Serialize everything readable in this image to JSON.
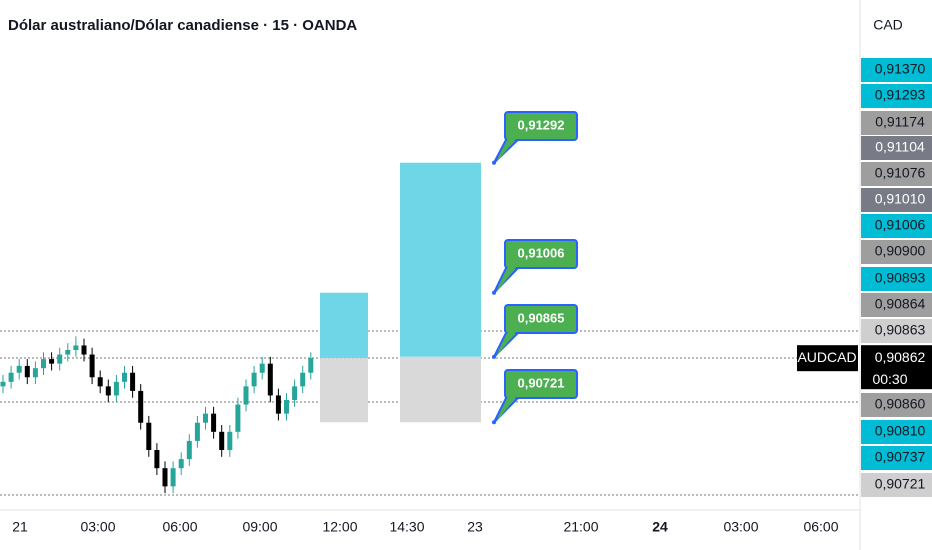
{
  "header": {
    "title": "Dólar australiano/Dólar canadiense · 15 · OANDA",
    "currency": "CAD"
  },
  "chart_data": {
    "type": "candlestick",
    "symbol": "AUDCAD",
    "ylim": [
      0.9055,
      0.9165
    ],
    "up_color": "#26a69a",
    "down_color": "#000000",
    "candles": [
      [
        0.908,
        0.90825,
        0.90785,
        0.9081
      ],
      [
        0.9081,
        0.90845,
        0.90795,
        0.9083
      ],
      [
        0.9083,
        0.9086,
        0.90815,
        0.90845
      ],
      [
        0.90845,
        0.9086,
        0.90805,
        0.9082
      ],
      [
        0.9082,
        0.90855,
        0.90805,
        0.9084
      ],
      [
        0.9084,
        0.90875,
        0.90825,
        0.9086
      ],
      [
        0.9086,
        0.90875,
        0.90835,
        0.9085
      ],
      [
        0.9085,
        0.90885,
        0.90835,
        0.9087
      ],
      [
        0.9087,
        0.90895,
        0.90855,
        0.9088
      ],
      [
        0.9088,
        0.9091,
        0.90865,
        0.9089
      ],
      [
        0.9089,
        0.90905,
        0.90855,
        0.9087
      ],
      [
        0.9087,
        0.90885,
        0.90805,
        0.9082
      ],
      [
        0.9082,
        0.90835,
        0.90785,
        0.908
      ],
      [
        0.908,
        0.90815,
        0.90765,
        0.9078
      ],
      [
        0.9078,
        0.90825,
        0.90765,
        0.9081
      ],
      [
        0.9081,
        0.90845,
        0.90795,
        0.9083
      ],
      [
        0.9083,
        0.90845,
        0.90775,
        0.9079
      ],
      [
        0.9079,
        0.90805,
        0.90705,
        0.9072
      ],
      [
        0.9072,
        0.90735,
        0.90645,
        0.9066
      ],
      [
        0.9066,
        0.90675,
        0.90605,
        0.9062
      ],
      [
        0.9062,
        0.90635,
        0.90565,
        0.9058
      ],
      [
        0.9058,
        0.90635,
        0.90565,
        0.9062
      ],
      [
        0.9062,
        0.90655,
        0.90605,
        0.9064
      ],
      [
        0.9064,
        0.90695,
        0.90625,
        0.9068
      ],
      [
        0.9068,
        0.90735,
        0.90665,
        0.9072
      ],
      [
        0.9072,
        0.90755,
        0.90705,
        0.9074
      ],
      [
        0.9074,
        0.90755,
        0.90685,
        0.907
      ],
      [
        0.907,
        0.90715,
        0.90645,
        0.9066
      ],
      [
        0.9066,
        0.90715,
        0.90645,
        0.907
      ],
      [
        0.907,
        0.90775,
        0.90685,
        0.9076
      ],
      [
        0.9076,
        0.90815,
        0.90745,
        0.908
      ],
      [
        0.908,
        0.90845,
        0.90785,
        0.9083
      ],
      [
        0.9083,
        0.90865,
        0.90815,
        0.9085
      ],
      [
        0.9085,
        0.90865,
        0.90765,
        0.9078
      ],
      [
        0.9078,
        0.90795,
        0.90725,
        0.9074
      ],
      [
        0.9074,
        0.90785,
        0.90725,
        0.9077
      ],
      [
        0.9077,
        0.90815,
        0.90755,
        0.908
      ],
      [
        0.908,
        0.90845,
        0.90785,
        0.9083
      ],
      [
        0.9083,
        0.90875,
        0.90815,
        0.90862
      ]
    ],
    "positions": [
      {
        "entry": 0.90862,
        "target": 0.91006,
        "stop": 0.90721
      },
      {
        "entry": 0.90865,
        "target": 0.91292,
        "stop": 0.90721
      }
    ],
    "callouts": [
      {
        "value": 0.91292,
        "label": "0,91292"
      },
      {
        "value": 0.91006,
        "label": "0,91006"
      },
      {
        "value": 0.90865,
        "label": "0,90865"
      },
      {
        "value": 0.90721,
        "label": "0,90721"
      }
    ],
    "x_labels": [
      {
        "text": "21",
        "bold": false
      },
      {
        "text": "03:00",
        "bold": false
      },
      {
        "text": "06:00",
        "bold": false
      },
      {
        "text": "09:00",
        "bold": false
      },
      {
        "text": "12:00",
        "bold": false
      },
      {
        "text": "14:30",
        "bold": false
      },
      {
        "text": "23",
        "bold": false
      },
      {
        "text": "21:00",
        "bold": false
      },
      {
        "text": "24",
        "bold": true
      },
      {
        "text": "03:00",
        "bold": false
      },
      {
        "text": "06:00",
        "bold": false
      }
    ],
    "price_tags": [
      {
        "label": "0,91370",
        "color": "#00bcd4"
      },
      {
        "label": "0,91293",
        "color": "#00bcd4"
      },
      {
        "label": "0,91174",
        "color": "#9e9e9e"
      },
      {
        "label": "0,91104",
        "color": "#787b86"
      },
      {
        "label": "0,91076",
        "color": "#9e9e9e"
      },
      {
        "label": "0,91010",
        "color": "#787b86"
      },
      {
        "label": "0,91006",
        "color": "#00bcd4"
      },
      {
        "label": "0,90900",
        "color": "#9e9e9e"
      },
      {
        "label": "0,90893",
        "color": "#00bcd4"
      },
      {
        "label": "0,90864",
        "color": "#9e9e9e"
      },
      {
        "label": "0,90863",
        "color": "#cfcfcf"
      },
      {
        "label": "0,90860",
        "color": "#9e9e9e"
      },
      {
        "label": "0,90810",
        "color": "#00bcd4"
      },
      {
        "label": "0,90737",
        "color": "#00bcd4"
      },
      {
        "label": "0,90721",
        "color": "#cfcfcf"
      }
    ],
    "last_price": {
      "value": 0.90862,
      "label": "0,90862",
      "countdown": "00:30"
    }
  }
}
